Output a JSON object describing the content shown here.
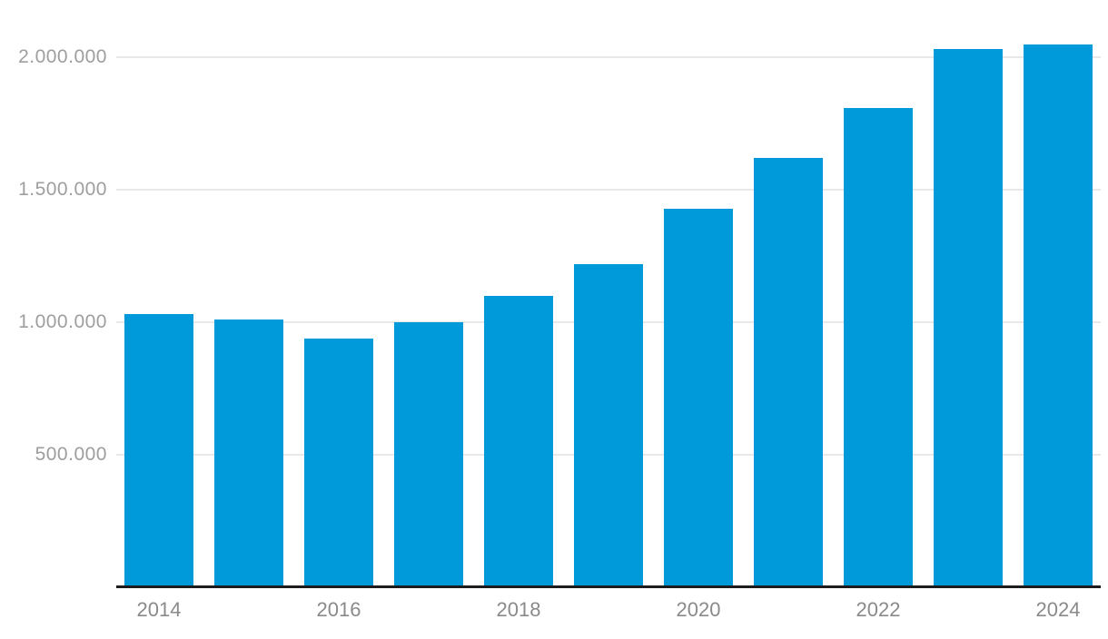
{
  "chart_data": {
    "type": "bar",
    "title": "",
    "xlabel": "",
    "ylabel": "",
    "categories": [
      "2014",
      "2015",
      "2016",
      "2017",
      "2018",
      "2019",
      "2020",
      "2021",
      "2022",
      "2023",
      "2024"
    ],
    "values": [
      1030000,
      1010000,
      940000,
      1000000,
      1100000,
      1220000,
      1430000,
      1620000,
      1810000,
      2030000,
      2050000
    ],
    "series": [
      {
        "name": "value",
        "values": [
          1030000,
          1010000,
          940000,
          1000000,
          1100000,
          1220000,
          1430000,
          1620000,
          1810000,
          2030000,
          2050000
        ]
      }
    ],
    "x_tick_labels": [
      "2014",
      "2016",
      "2018",
      "2020",
      "2022",
      "2024"
    ],
    "y_ticks": [
      {
        "value": 500000,
        "label": "500.000"
      },
      {
        "value": 1000000,
        "label": "1.000.000"
      },
      {
        "value": 1500000,
        "label": "1.500.000"
      },
      {
        "value": 2000000,
        "label": "2.000.000"
      }
    ],
    "ylim": [
      0,
      2215000
    ],
    "grid": "horizontal-only",
    "legend": "none",
    "number_format": "de (dot thousands separator)",
    "colors": {
      "bar": "#0099d9",
      "gridline": "#e8e8e8",
      "axis_line": "#1c1c1c",
      "y_label": "#9e9e9e",
      "x_label": "#8a8a8a",
      "background": "#ffffff"
    }
  }
}
